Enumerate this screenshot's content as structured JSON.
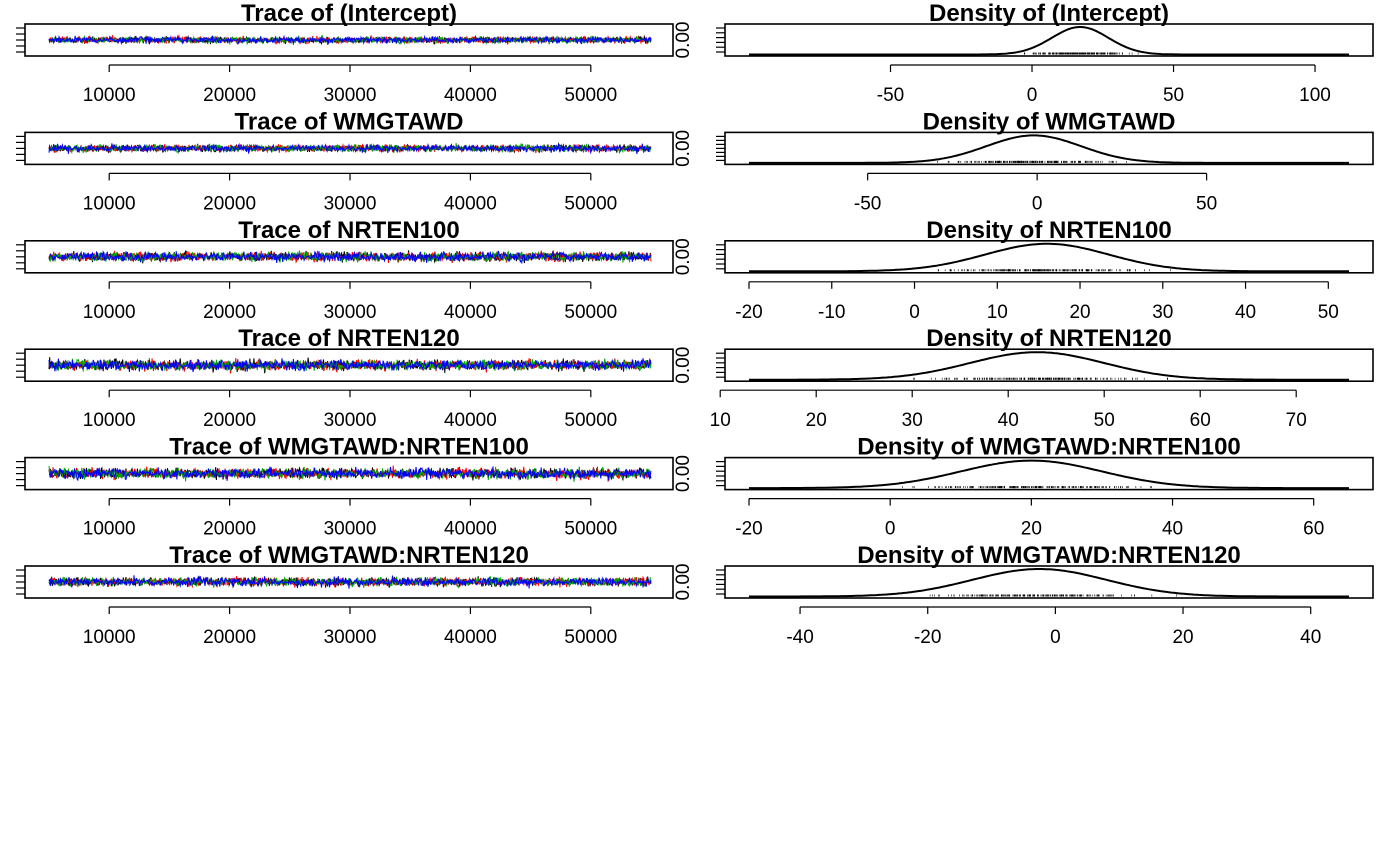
{
  "chart_data": [
    {
      "type": "line",
      "title": "Trace of (Intercept)",
      "x_ticks": [
        10000,
        20000,
        30000,
        40000,
        50000
      ],
      "xlim": [
        5000,
        55000
      ],
      "y_center": 0.5,
      "y_spread": 0.18,
      "series": [
        {
          "color": "#000000"
        },
        {
          "color": "#ff0000"
        },
        {
          "color": "#00aa00"
        },
        {
          "color": "#0000ff"
        }
      ]
    },
    {
      "type": "area",
      "title": "Density of (Intercept)",
      "x_ticks": [
        -50,
        0,
        50,
        100
      ],
      "xlim": [
        -100,
        112
      ],
      "y_tick_label": "0.00",
      "density": {
        "mean": 17,
        "sd": 10,
        "x_range": [
          -100,
          112
        ]
      }
    },
    {
      "type": "line",
      "title": "Trace of WMGTAWD",
      "x_ticks": [
        10000,
        20000,
        30000,
        40000,
        50000
      ],
      "xlim": [
        5000,
        55000
      ],
      "y_center": 0.5,
      "y_spread": 0.2,
      "series": [
        {
          "color": "#000000"
        },
        {
          "color": "#ff0000"
        },
        {
          "color": "#00aa00"
        },
        {
          "color": "#0000ff"
        }
      ]
    },
    {
      "type": "area",
      "title": "Density of WMGTAWD",
      "x_ticks": [
        -50,
        0,
        50
      ],
      "xlim": [
        -85,
        92
      ],
      "y_tick_label": "0.00",
      "density": {
        "mean": -1,
        "sd": 14,
        "x_range": [
          -85,
          92
        ]
      }
    },
    {
      "type": "line",
      "title": "Trace of NRTEN100",
      "x_ticks": [
        10000,
        20000,
        30000,
        40000,
        50000
      ],
      "xlim": [
        5000,
        55000
      ],
      "y_center": 0.5,
      "y_spread": 0.27,
      "series": [
        {
          "color": "#000000"
        },
        {
          "color": "#ff0000"
        },
        {
          "color": "#00aa00"
        },
        {
          "color": "#0000ff"
        }
      ]
    },
    {
      "type": "area",
      "title": "Density of NRTEN100",
      "x_ticks": [
        -20,
        -10,
        0,
        10,
        20,
        30,
        40,
        50
      ],
      "xlim": [
        -20,
        52.5
      ],
      "y_tick_label": "0.00",
      "density": {
        "mean": 16,
        "sd": 7.5,
        "x_range": [
          -20,
          52.5
        ]
      }
    },
    {
      "type": "line",
      "title": "Trace of NRTEN120",
      "x_ticks": [
        10000,
        20000,
        30000,
        40000,
        50000
      ],
      "xlim": [
        5000,
        55000
      ],
      "y_center": 0.5,
      "y_spread": 0.3,
      "series": [
        {
          "color": "#000000"
        },
        {
          "color": "#ff0000"
        },
        {
          "color": "#00aa00"
        },
        {
          "color": "#0000ff"
        }
      ]
    },
    {
      "type": "area",
      "title": "Density of NRTEN120",
      "x_ticks": [
        10,
        20,
        30,
        40,
        50,
        60,
        70
      ],
      "xlim": [
        13,
        75.5
      ],
      "y_tick_label": "0.00",
      "density": {
        "mean": 43,
        "sd": 7,
        "x_range": [
          13,
          75.5
        ]
      }
    },
    {
      "type": "line",
      "title": "Trace of WMGTAWD:NRTEN100",
      "x_ticks": [
        10000,
        20000,
        30000,
        40000,
        50000
      ],
      "xlim": [
        5000,
        55000
      ],
      "y_center": 0.5,
      "y_spread": 0.3,
      "series": [
        {
          "color": "#000000"
        },
        {
          "color": "#ff0000"
        },
        {
          "color": "#00aa00"
        },
        {
          "color": "#0000ff"
        }
      ]
    },
    {
      "type": "area",
      "title": "Density of WMGTAWD:NRTEN100",
      "x_ticks": [
        -20,
        0,
        20,
        40,
        60
      ],
      "xlim": [
        -20,
        65
      ],
      "y_tick_label": "0.00",
      "density": {
        "mean": 20,
        "sd": 10,
        "x_range": [
          -20,
          65
        ]
      }
    },
    {
      "type": "line",
      "title": "Trace of WMGTAWD:NRTEN120",
      "x_ticks": [
        10000,
        20000,
        30000,
        40000,
        50000
      ],
      "xlim": [
        5000,
        55000
      ],
      "y_center": 0.5,
      "y_spread": 0.25,
      "series": [
        {
          "color": "#000000"
        },
        {
          "color": "#ff0000"
        },
        {
          "color": "#00aa00"
        },
        {
          "color": "#0000ff"
        }
      ]
    },
    {
      "type": "area",
      "title": "Density of WMGTAWD:NRTEN120",
      "x_ticks": [
        -40,
        -20,
        0,
        20,
        40
      ],
      "xlim": [
        -48,
        46
      ],
      "y_tick_label": "0.00",
      "density": {
        "mean": -2.5,
        "sd": 10.5,
        "x_range": [
          -48,
          46
        ]
      }
    }
  ]
}
